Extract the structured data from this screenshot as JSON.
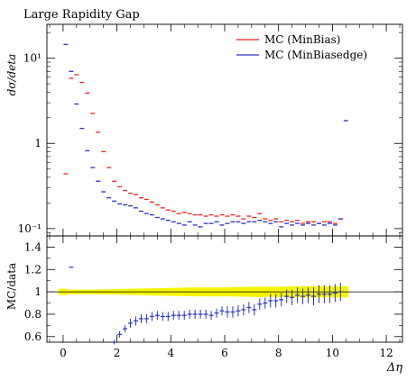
{
  "chart_data": {
    "type": "scatter",
    "title": "Large Rapidity Gap",
    "xlabel": "Δη",
    "ylabel": "dσ/deta",
    "ratio_ylabel": "MC/data",
    "xlim": [
      -0.6,
      12.6
    ],
    "ylim": [
      0.082,
      25
    ],
    "yscale": "log",
    "ratio_ylim": [
      0.55,
      1.5
    ],
    "x_ticks": [
      "0",
      "2",
      "4",
      "6",
      "8",
      "10",
      "12"
    ],
    "y_ticks": [
      "10⁻¹",
      "1",
      "10¹"
    ],
    "ratio_ticks": [
      "0.6",
      "0.8",
      "1",
      "1.2",
      "1.4"
    ],
    "legend_position": "top-right",
    "series": [
      {
        "name": "MC (MinBias)",
        "color": "#e8251e",
        "x": [
          0.1,
          0.3,
          0.5,
          0.7,
          0.9,
          1.1,
          1.3,
          1.5,
          1.7,
          1.9,
          2.1,
          2.3,
          2.5,
          2.7,
          2.9,
          3.1,
          3.3,
          3.5,
          3.7,
          3.9,
          4.1,
          4.3,
          4.5,
          4.7,
          4.9,
          5.1,
          5.3,
          5.5,
          5.7,
          5.9,
          6.1,
          6.3,
          6.5,
          6.7,
          6.9,
          7.1,
          7.3,
          7.5,
          7.7,
          7.9,
          8.1,
          8.3,
          8.5,
          8.7,
          8.9,
          9.1,
          9.3,
          9.5,
          9.7,
          9.9,
          10.1,
          10.3
        ],
        "y": [
          0.44,
          5.8,
          6.4,
          5.2,
          3.9,
          2.25,
          1.35,
          0.8,
          0.52,
          0.36,
          0.31,
          0.28,
          0.26,
          0.25,
          0.23,
          0.22,
          0.205,
          0.19,
          0.175,
          0.165,
          0.16,
          0.15,
          0.155,
          0.15,
          0.145,
          0.145,
          0.14,
          0.145,
          0.14,
          0.145,
          0.14,
          0.145,
          0.14,
          0.13,
          0.14,
          0.135,
          0.15,
          0.13,
          0.125,
          0.13,
          0.12,
          0.125,
          0.12,
          0.125,
          0.115,
          0.12,
          0.12,
          0.115,
          0.12,
          0.12,
          0.115,
          0.13
        ]
      },
      {
        "name": "MC (MinBiasedge)",
        "color": "#2b33c8",
        "x": [
          0.1,
          0.3,
          0.5,
          0.7,
          0.9,
          1.1,
          1.3,
          1.5,
          1.7,
          1.9,
          2.1,
          2.3,
          2.5,
          2.7,
          2.9,
          3.1,
          3.3,
          3.5,
          3.7,
          3.9,
          4.1,
          4.3,
          4.5,
          4.7,
          4.9,
          5.1,
          5.3,
          5.5,
          5.7,
          5.9,
          6.1,
          6.3,
          6.5,
          6.7,
          6.9,
          7.1,
          7.3,
          7.5,
          7.7,
          7.9,
          8.1,
          8.3,
          8.5,
          8.7,
          8.9,
          9.1,
          9.3,
          9.5,
          9.7,
          9.9,
          10.1,
          10.3,
          10.5
        ],
        "y": [
          14.5,
          7.0,
          2.9,
          1.5,
          0.82,
          0.52,
          0.36,
          0.27,
          0.23,
          0.21,
          0.195,
          0.19,
          0.185,
          0.175,
          0.16,
          0.15,
          0.145,
          0.135,
          0.13,
          0.125,
          0.12,
          0.115,
          0.11,
          0.12,
          0.11,
          0.105,
          0.115,
          0.115,
          0.12,
          0.11,
          0.115,
          0.12,
          0.12,
          0.115,
          0.12,
          0.12,
          0.125,
          0.12,
          0.115,
          0.12,
          0.105,
          0.115,
          0.11,
          0.115,
          0.11,
          0.115,
          0.11,
          0.115,
          0.11,
          0.115,
          0.11,
          0.13,
          1.85
        ]
      }
    ],
    "ratio_series": [
      {
        "name": "MC (MinBiasedge)",
        "color": "#2b33c8",
        "x": [
          0.3,
          1.9,
          2.1,
          2.3,
          2.5,
          2.7,
          2.9,
          3.1,
          3.3,
          3.5,
          3.7,
          3.9,
          4.1,
          4.3,
          4.5,
          4.7,
          4.9,
          5.1,
          5.3,
          5.5,
          5.7,
          5.9,
          6.1,
          6.3,
          6.5,
          6.7,
          6.9,
          7.1,
          7.3,
          7.5,
          7.7,
          7.9,
          8.1,
          8.3,
          8.5,
          8.7,
          8.9,
          9.1,
          9.3,
          9.5,
          9.7,
          9.9,
          10.1,
          10.3
        ],
        "y": [
          1.22,
          0.55,
          0.62,
          0.67,
          0.72,
          0.74,
          0.76,
          0.76,
          0.78,
          0.79,
          0.78,
          0.78,
          0.79,
          0.79,
          0.79,
          0.8,
          0.8,
          0.8,
          0.8,
          0.79,
          0.81,
          0.83,
          0.82,
          0.82,
          0.83,
          0.84,
          0.86,
          0.84,
          0.89,
          0.9,
          0.92,
          0.92,
          0.93,
          0.96,
          0.95,
          0.97,
          0.96,
          0.97,
          0.96,
          0.98,
          0.98,
          0.98,
          0.99,
          1.0
        ],
        "err": [
          0.0,
          0.02,
          0.03,
          0.03,
          0.04,
          0.04,
          0.04,
          0.04,
          0.04,
          0.04,
          0.04,
          0.04,
          0.04,
          0.04,
          0.04,
          0.04,
          0.04,
          0.04,
          0.04,
          0.04,
          0.04,
          0.04,
          0.05,
          0.05,
          0.05,
          0.05,
          0.05,
          0.05,
          0.05,
          0.05,
          0.06,
          0.06,
          0.06,
          0.06,
          0.07,
          0.07,
          0.07,
          0.07,
          0.08,
          0.08,
          0.08,
          0.08,
          0.08,
          0.08
        ]
      }
    ],
    "ratio_band": {
      "color": "#f5f500",
      "x": [
        0,
        1,
        2,
        3,
        4,
        5,
        6,
        7,
        8,
        9,
        10,
        10.6
      ],
      "halfwidth": [
        0.02,
        0.02,
        0.025,
        0.03,
        0.035,
        0.04,
        0.04,
        0.045,
        0.045,
        0.05,
        0.05,
        0.05
      ]
    }
  }
}
